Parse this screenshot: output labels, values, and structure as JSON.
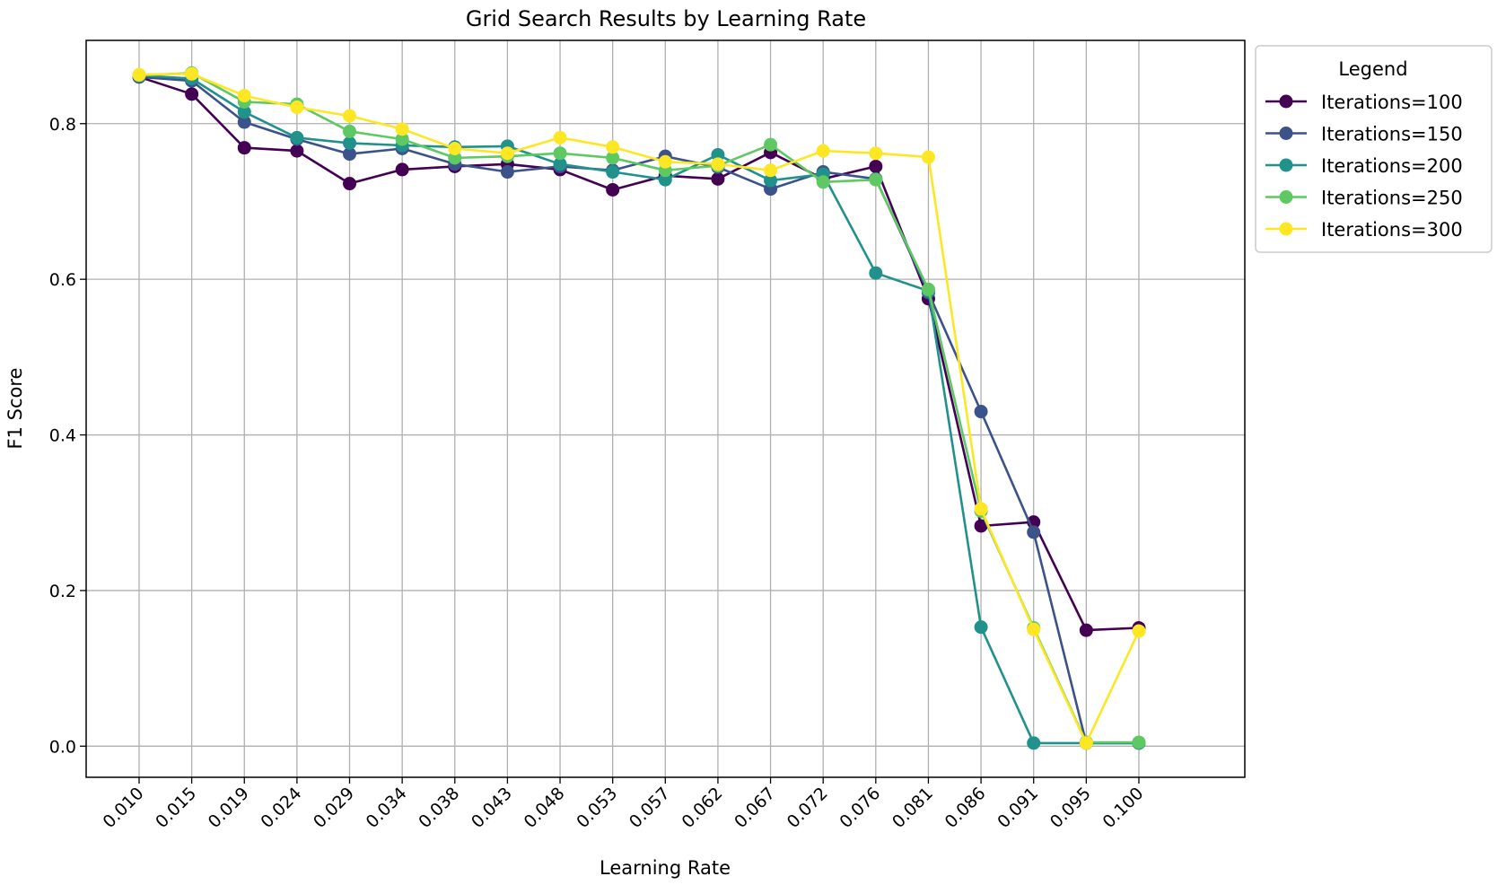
{
  "chart_data": {
    "type": "line",
    "title": "Grid Search Results by Learning Rate",
    "xlabel": "Learning Rate",
    "ylabel": "F1 Score",
    "categories": [
      "0.010",
      "0.015",
      "0.019",
      "0.024",
      "0.029",
      "0.034",
      "0.038",
      "0.043",
      "0.048",
      "0.053",
      "0.057",
      "0.062",
      "0.067",
      "0.072",
      "0.076",
      "0.081",
      "0.086",
      "0.091",
      "0.095",
      "0.100"
    ],
    "y_ticks": [
      "0.0",
      "0.2",
      "0.4",
      "0.6",
      "0.8"
    ],
    "ylim": [
      -0.04,
      0.907
    ],
    "grid": true,
    "legend": {
      "title": "Legend",
      "placement": "outside right, top"
    },
    "series": [
      {
        "name": "Iterations=100",
        "color": "#440154",
        "values": [
          0.86,
          0.838,
          0.769,
          0.765,
          0.723,
          0.741,
          0.745,
          0.748,
          0.741,
          0.715,
          0.733,
          0.729,
          0.763,
          0.729,
          0.745,
          0.575,
          0.283,
          0.288,
          0.149,
          0.152
        ]
      },
      {
        "name": "Iterations=150",
        "color": "#3b528b",
        "values": [
          0.86,
          0.855,
          0.802,
          0.78,
          0.761,
          0.768,
          0.748,
          0.738,
          0.745,
          0.74,
          0.758,
          0.744,
          0.716,
          0.738,
          0.729,
          0.583,
          0.43,
          0.275,
          0.004,
          0.004
        ]
      },
      {
        "name": "Iterations=200",
        "color": "#21918c",
        "values": [
          0.862,
          0.858,
          0.815,
          0.782,
          0.775,
          0.772,
          0.77,
          0.771,
          0.748,
          0.738,
          0.728,
          0.76,
          0.727,
          0.735,
          0.608,
          0.585,
          0.153,
          0.004,
          0.004,
          0.004
        ]
      },
      {
        "name": "Iterations=250",
        "color": "#5ec962",
        "values": [
          0.862,
          0.865,
          0.828,
          0.825,
          0.79,
          0.78,
          0.756,
          0.758,
          0.762,
          0.756,
          0.74,
          0.746,
          0.773,
          0.725,
          0.728,
          0.587,
          0.302,
          0.152,
          0.005,
          0.005
        ]
      },
      {
        "name": "Iterations=300",
        "color": "#fde725",
        "values": [
          0.863,
          0.864,
          0.836,
          0.821,
          0.81,
          0.793,
          0.768,
          0.762,
          0.782,
          0.77,
          0.751,
          0.748,
          0.74,
          0.765,
          0.762,
          0.757,
          0.305,
          0.15,
          0.004,
          0.148
        ]
      }
    ]
  }
}
